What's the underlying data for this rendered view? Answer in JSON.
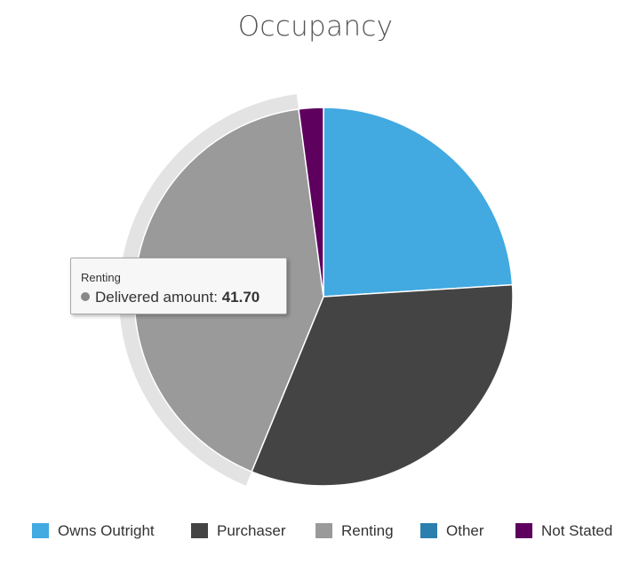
{
  "chart_data": {
    "type": "pie",
    "title": "Occupancy",
    "series_name": "Delivered amount",
    "categories": [
      "Owns Outright",
      "Purchaser",
      "Renting",
      "Other",
      "Not Stated"
    ],
    "values": [
      24.0,
      32.2,
      41.7,
      0.0,
      2.1
    ],
    "colors": [
      "#42a9e1",
      "#444444",
      "#9a9a9a",
      "#2a7fae",
      "#5e005e"
    ],
    "highlighted": "Renting",
    "legend_position": "bottom"
  },
  "tooltip": {
    "title": "Renting",
    "label": "Delivered amount",
    "value": "41.70",
    "dot_color": "#888888"
  }
}
